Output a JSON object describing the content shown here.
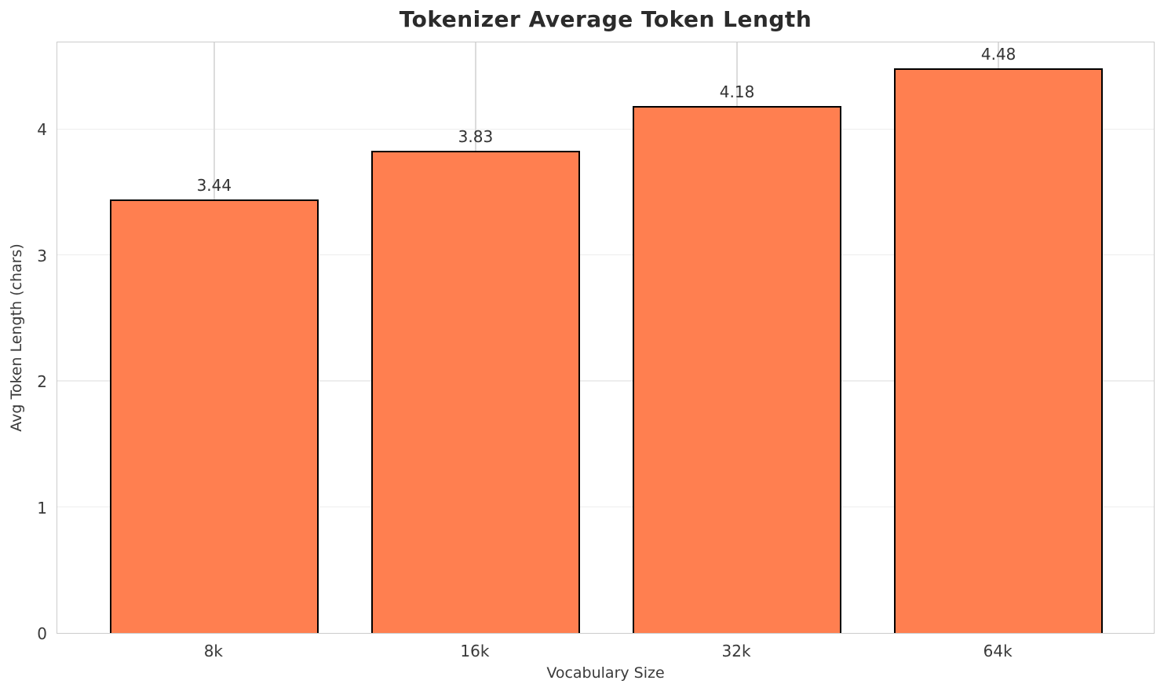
{
  "chart_data": {
    "type": "bar",
    "title": "Tokenizer Average Token Length",
    "xlabel": "Vocabulary Size",
    "ylabel": "Avg Token Length (chars)",
    "categories": [
      "8k",
      "16k",
      "32k",
      "64k"
    ],
    "values": [
      3.44,
      3.83,
      4.18,
      4.48
    ],
    "value_labels": [
      "3.44",
      "3.83",
      "4.18",
      "4.48"
    ],
    "yticks": [
      0,
      1,
      2,
      3,
      4
    ],
    "ylim": [
      0,
      4.7
    ],
    "bar_color": "#FF7F50",
    "bar_edge_color": "#000000",
    "grid": "both",
    "legend_position": "none"
  }
}
